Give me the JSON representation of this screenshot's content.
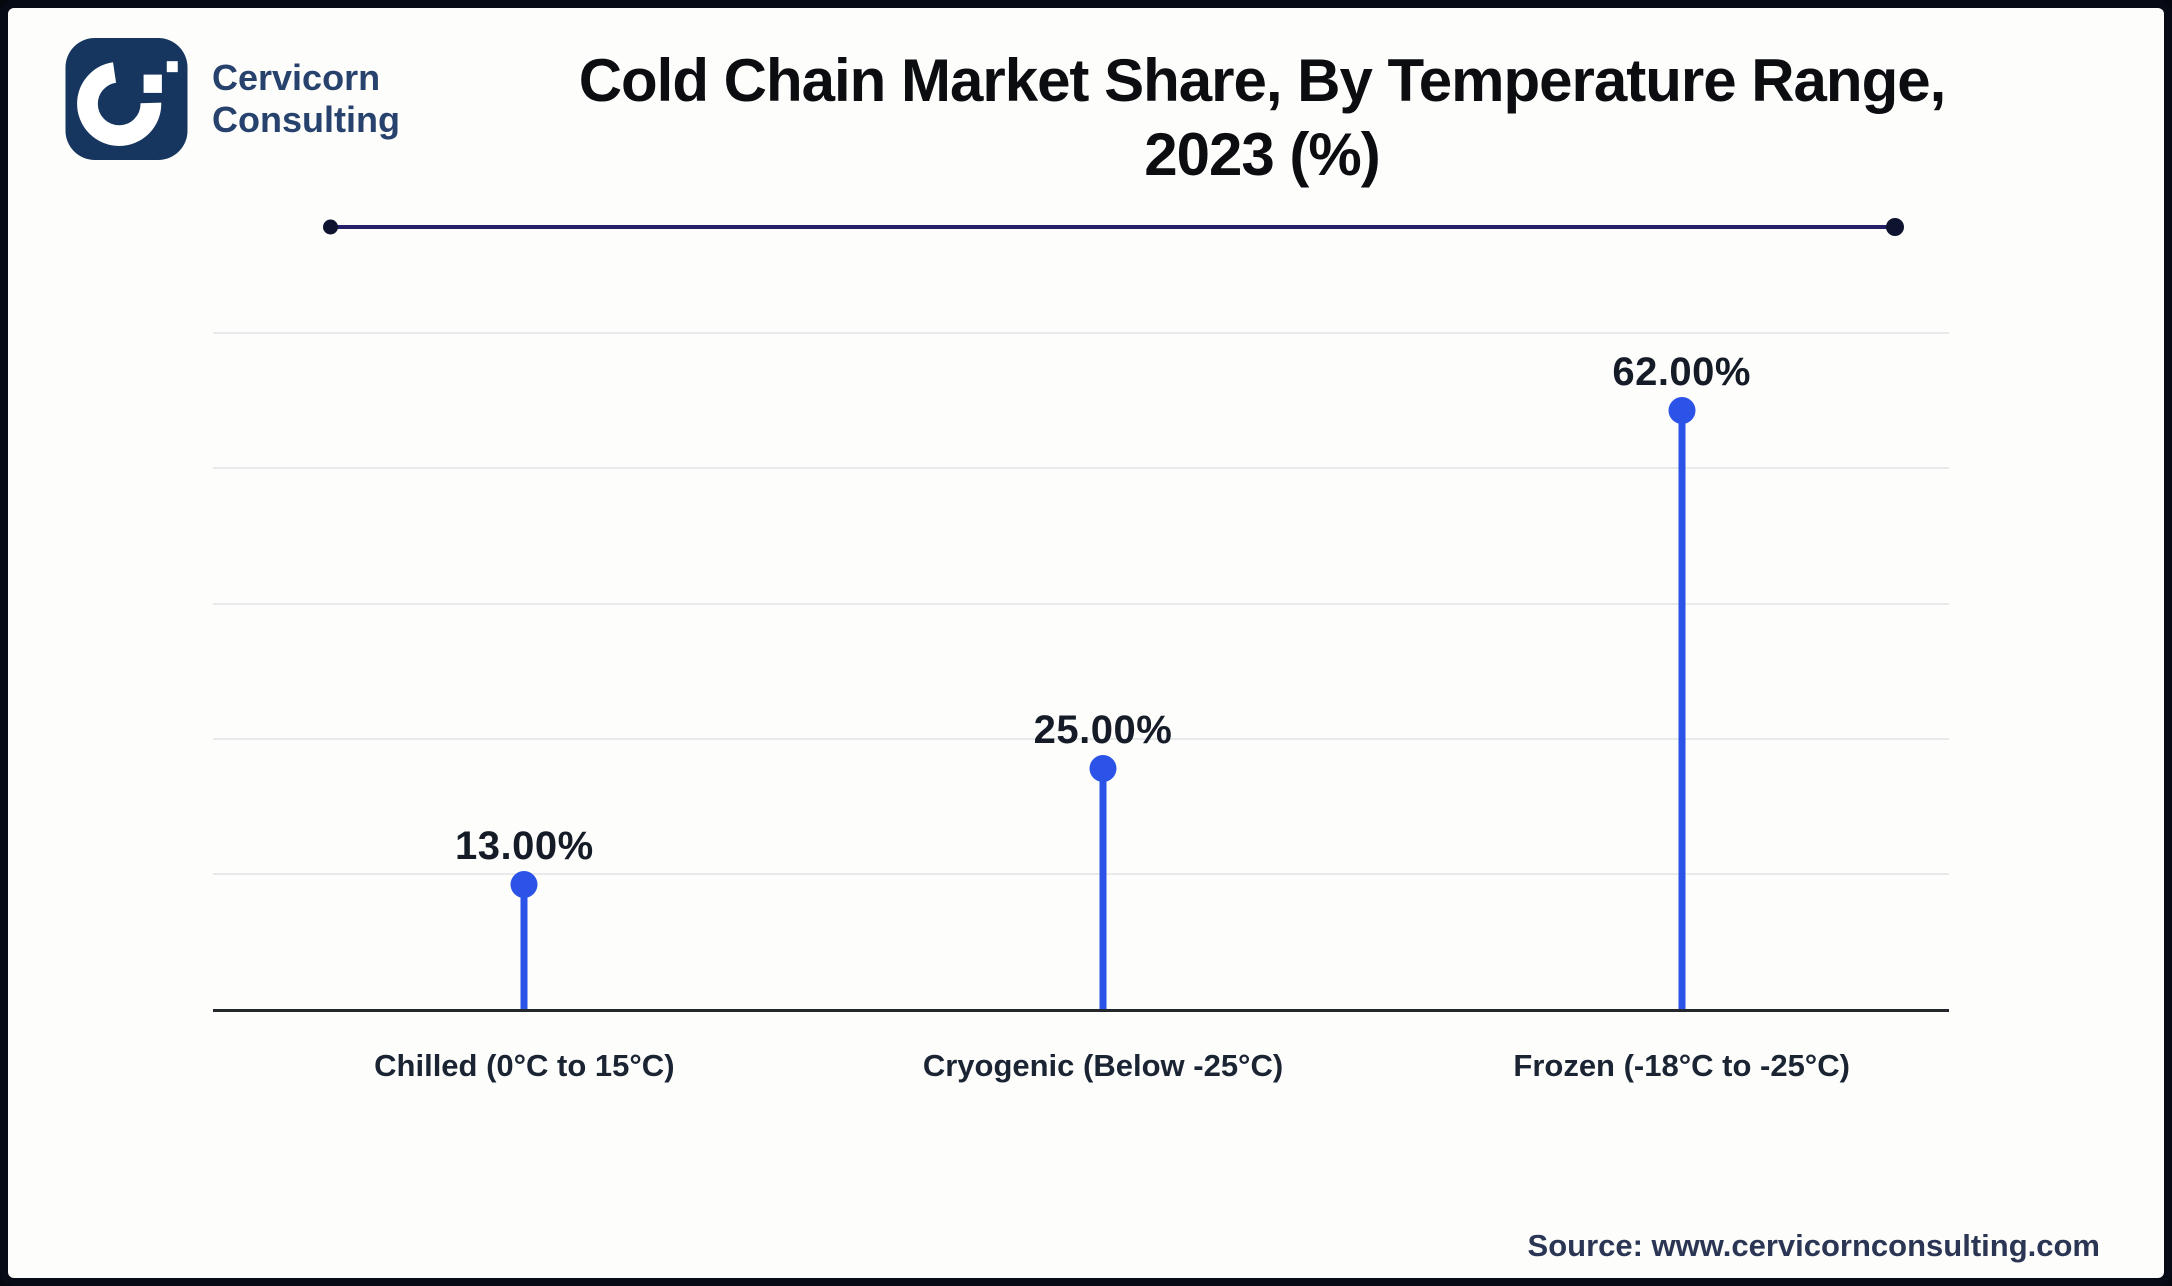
{
  "brand": {
    "line1": "Cervicorn",
    "line2": "Consulting",
    "tile_color": "#16365f",
    "text_color": "#28426e"
  },
  "header": {
    "title_line1": "Cold Chain Market Share, By Temperature Range,",
    "title_line2": "2023 (%)"
  },
  "footer": {
    "source": "Source: www.cervicornconsulting.com"
  },
  "chart_data": {
    "type": "bar",
    "style": "lollipop",
    "title": "Cold Chain Market Share, By Temperature Range, 2023 (%)",
    "categories": [
      "Chilled (0°C to 15°C)",
      "Cryogenic (Below -25°C)",
      "Frozen (-18°C to -25°C)"
    ],
    "values": [
      13,
      25,
      62
    ],
    "value_labels": [
      "13.00%",
      "25.00%",
      "62.00%"
    ],
    "xlabel": "",
    "ylabel": "",
    "ylim": [
      0,
      70
    ],
    "grid": true,
    "gridline_count": 5,
    "legend": "none",
    "accent_color": "#2b53e8"
  }
}
